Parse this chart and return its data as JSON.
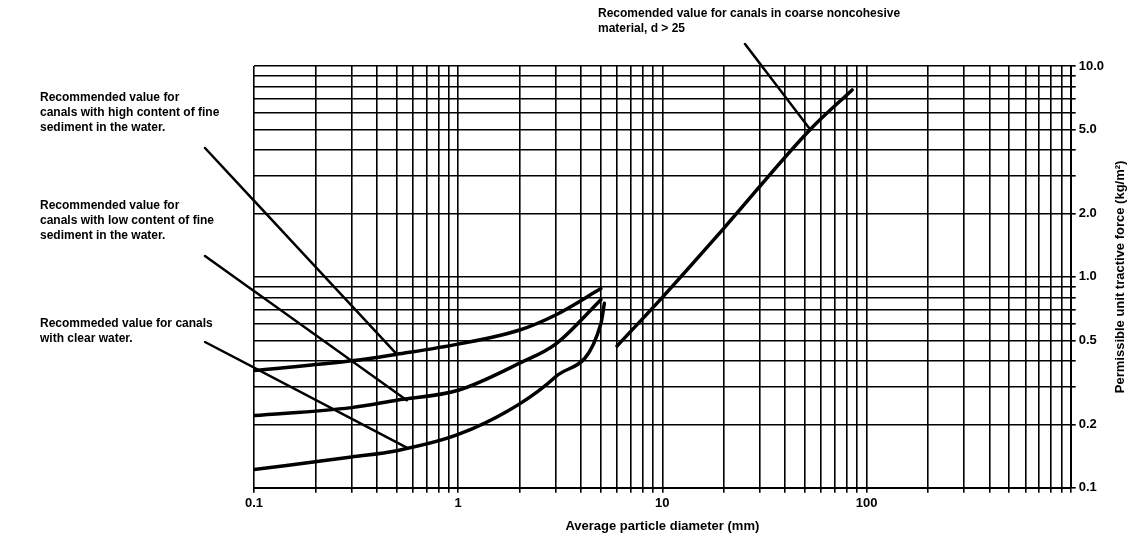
{
  "chart_data": {
    "type": "line",
    "xlabel": "Average particle diameter (mm)",
    "ylabel": "Permissible unit tractive force (kg/m²)",
    "log": "xy",
    "grid": true,
    "marker": "none",
    "xlim": [
      0.1,
      1000
    ],
    "ylim": [
      0.1,
      10
    ],
    "xticks": [
      {
        "value": 0.1,
        "label": "0.1"
      },
      {
        "value": 0.2,
        "label": null
      },
      {
        "value": 0.3,
        "label": null
      },
      {
        "value": 0.4,
        "label": null
      },
      {
        "value": 0.5,
        "label": null
      },
      {
        "value": 0.6,
        "label": null
      },
      {
        "value": 0.7,
        "label": null
      },
      {
        "value": 0.8,
        "label": null
      },
      {
        "value": 0.9,
        "label": null
      },
      {
        "value": 1,
        "label": "1"
      },
      {
        "value": 2,
        "label": null
      },
      {
        "value": 3,
        "label": null
      },
      {
        "value": 4,
        "label": null
      },
      {
        "value": 5,
        "label": null
      },
      {
        "value": 6,
        "label": null
      },
      {
        "value": 7,
        "label": null
      },
      {
        "value": 8,
        "label": null
      },
      {
        "value": 9,
        "label": null
      },
      {
        "value": 10,
        "label": "10"
      },
      {
        "value": 20,
        "label": null
      },
      {
        "value": 30,
        "label": null
      },
      {
        "value": 40,
        "label": null
      },
      {
        "value": 50,
        "label": null
      },
      {
        "value": 60,
        "label": null
      },
      {
        "value": 70,
        "label": null
      },
      {
        "value": 80,
        "label": null
      },
      {
        "value": 90,
        "label": null
      },
      {
        "value": 100,
        "label": "100"
      },
      {
        "value": 200,
        "label": null
      },
      {
        "value": 300,
        "label": null
      },
      {
        "value": 400,
        "label": null
      },
      {
        "value": 500,
        "label": null
      },
      {
        "value": 600,
        "label": null
      },
      {
        "value": 700,
        "label": null
      },
      {
        "value": 800,
        "label": null
      },
      {
        "value": 900,
        "label": null
      },
      {
        "value": 1000,
        "label": null
      }
    ],
    "yticks": [
      {
        "value": 0.1,
        "label": "0.1"
      },
      {
        "value": 0.2,
        "label": "0.2"
      },
      {
        "value": 0.3,
        "label": null
      },
      {
        "value": 0.4,
        "label": null
      },
      {
        "value": 0.5,
        "label": "0.5"
      },
      {
        "value": 0.6,
        "label": null
      },
      {
        "value": 0.7,
        "label": null
      },
      {
        "value": 0.8,
        "label": null
      },
      {
        "value": 0.9,
        "label": null
      },
      {
        "value": 1,
        "label": "1.0"
      },
      {
        "value": 2,
        "label": "2.0"
      },
      {
        "value": 3,
        "label": null
      },
      {
        "value": 4,
        "label": null
      },
      {
        "value": 5,
        "label": "5.0"
      },
      {
        "value": 6,
        "label": null
      },
      {
        "value": 7,
        "label": null
      },
      {
        "value": 8,
        "label": null
      },
      {
        "value": 9,
        "label": null
      },
      {
        "value": 10,
        "label": "10.0"
      }
    ],
    "series": [
      {
        "color": "#000000",
        "x": [
          0.1,
          0.3,
          0.5,
          1,
          2,
          3,
          5
        ],
        "values": [
          0.36,
          0.4,
          0.43,
          0.48,
          0.56,
          0.66,
          0.88
        ]
      },
      {
        "color": "#000000",
        "x": [
          0.1,
          0.3,
          0.5,
          1,
          2,
          3,
          5
        ],
        "values": [
          0.22,
          0.24,
          0.26,
          0.29,
          0.39,
          0.48,
          0.78
        ]
      },
      {
        "color": "#000000",
        "x": [
          0.1,
          0.3,
          0.5,
          1,
          2,
          3,
          5,
          5.2
        ],
        "values": [
          0.122,
          0.14,
          0.15,
          0.179,
          0.25,
          0.336,
          0.6,
          0.75
        ]
      },
      {
        "color": "#000000",
        "x": [
          6,
          10,
          20,
          53,
          85
        ],
        "values": [
          0.47,
          0.8,
          1.7,
          5,
          7.7
        ]
      }
    ],
    "annotations": [
      {
        "text": "Recomended value for canals in coarse noncohesive material, d > 25",
        "x": 53,
        "y": 5
      },
      {
        "text": "Recommended value for canals with high content of fine sediment in the water.",
        "x": 0.5,
        "y": 0.43
      },
      {
        "text": "Recommended value for canals with low content of fine sediment in the water.",
        "x": 0.56,
        "y": 0.26
      },
      {
        "text": "Recommeded value for canals with clear water.",
        "x": 0.56,
        "y": 0.155
      }
    ]
  }
}
